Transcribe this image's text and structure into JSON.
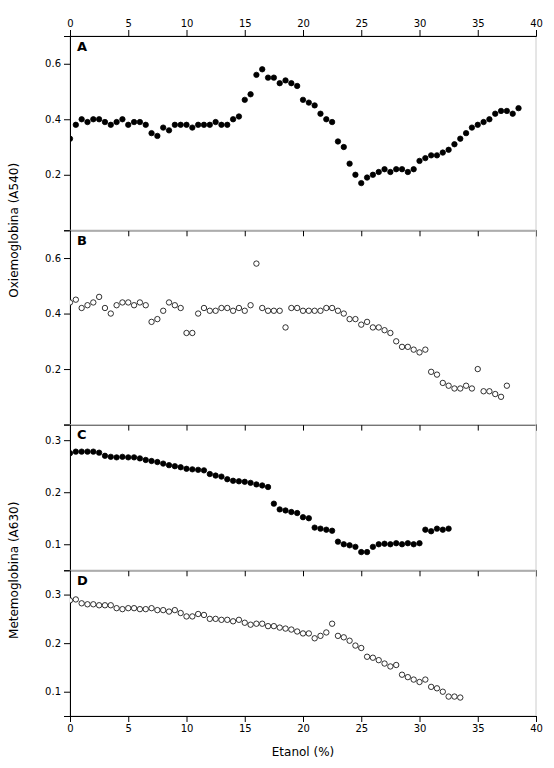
{
  "chart_data": [
    {
      "type": "scatter",
      "title": "A",
      "x": [
        0,
        0.5,
        1,
        1.5,
        2,
        2.5,
        3,
        3.5,
        4,
        4.5,
        5,
        5.5,
        6,
        6.5,
        7,
        7.5,
        8,
        8.5,
        9,
        9.5,
        10,
        10.5,
        11,
        11.5,
        12,
        12.5,
        13,
        13.5,
        14,
        14.5,
        15,
        15.5,
        16,
        16.5,
        17,
        17.5,
        18,
        18.5,
        19,
        19.5,
        20,
        20.5,
        21,
        21.5,
        22,
        22.5,
        23,
        23.5,
        24,
        24.5,
        25,
        25.5,
        26,
        26.5,
        27,
        27.5,
        28,
        28.5,
        29,
        29.5,
        30,
        30.5,
        31,
        31.5,
        32,
        32.5,
        33,
        33.5,
        34,
        34.5,
        35,
        35.5,
        36,
        36.5,
        37,
        37.5,
        38,
        38.5
      ],
      "values": [
        0.33,
        0.38,
        0.4,
        0.39,
        0.4,
        0.4,
        0.39,
        0.38,
        0.39,
        0.4,
        0.38,
        0.39,
        0.39,
        0.38,
        0.35,
        0.34,
        0.37,
        0.36,
        0.38,
        0.38,
        0.38,
        0.37,
        0.38,
        0.38,
        0.38,
        0.39,
        0.38,
        0.38,
        0.4,
        0.41,
        0.47,
        0.49,
        0.56,
        0.58,
        0.55,
        0.55,
        0.53,
        0.54,
        0.53,
        0.52,
        0.47,
        0.46,
        0.45,
        0.42,
        0.4,
        0.39,
        0.32,
        0.3,
        0.24,
        0.2,
        0.17,
        0.19,
        0.2,
        0.21,
        0.22,
        0.21,
        0.22,
        0.22,
        0.21,
        0.22,
        0.25,
        0.26,
        0.27,
        0.27,
        0.28,
        0.29,
        0.31,
        0.33,
        0.35,
        0.37,
        0.38,
        0.39,
        0.4,
        0.42,
        0.43,
        0.43,
        0.42,
        0.44
      ],
      "color": "black",
      "marker": "circle",
      "xlim": [
        0,
        40
      ],
      "xticks": [
        0,
        5,
        10,
        15,
        20,
        25,
        30,
        35,
        40
      ],
      "ylim": [
        0.0,
        0.7
      ],
      "yticks": [
        0.2,
        0.4,
        0.6
      ],
      "ylabel": "Oxiemoglobina (A540)"
    },
    {
      "type": "scatter",
      "title": "B",
      "x": [
        0,
        0.5,
        1,
        1.5,
        2,
        2.5,
        3,
        3.5,
        4,
        4.5,
        5,
        5.5,
        6,
        6.5,
        7,
        7.5,
        8,
        8.5,
        9,
        9.5,
        10,
        10.5,
        11,
        11.5,
        12,
        12.5,
        13,
        13.5,
        14,
        14.5,
        15,
        15.5,
        16,
        16.5,
        17,
        17.5,
        18,
        18.5,
        19,
        19.5,
        20,
        20.5,
        21,
        21.5,
        22,
        22.5,
        23,
        23.5,
        24,
        24.5,
        25,
        25.5,
        26,
        26.5,
        27,
        27.5,
        28,
        28.5,
        29,
        29.5,
        30,
        30.5,
        31,
        31.5,
        32,
        32.5,
        33,
        33.5,
        34,
        34.5,
        35,
        35.5,
        36,
        36.5,
        37,
        37.5
      ],
      "values": [
        0.44,
        0.45,
        0.42,
        0.43,
        0.44,
        0.46,
        0.42,
        0.4,
        0.43,
        0.44,
        0.44,
        0.43,
        0.44,
        0.43,
        0.37,
        0.38,
        0.41,
        0.44,
        0.43,
        0.42,
        0.33,
        0.33,
        0.4,
        0.42,
        0.41,
        0.41,
        0.42,
        0.42,
        0.41,
        0.42,
        0.41,
        0.43,
        0.58,
        0.42,
        0.41,
        0.41,
        0.41,
        0.35,
        0.42,
        0.42,
        0.41,
        0.41,
        0.41,
        0.41,
        0.42,
        0.42,
        0.41,
        0.4,
        0.38,
        0.38,
        0.36,
        0.37,
        0.35,
        0.35,
        0.34,
        0.33,
        0.3,
        0.28,
        0.28,
        0.27,
        0.26,
        0.27,
        0.19,
        0.18,
        0.15,
        0.14,
        0.13,
        0.13,
        0.14,
        0.13,
        0.2,
        0.12,
        0.12,
        0.11,
        0.1,
        0.14
      ],
      "color": "white",
      "marker": "circle",
      "xlim": [
        0,
        40
      ],
      "xticks": [
        0,
        5,
        10,
        15,
        20,
        25,
        30,
        35,
        40
      ],
      "ylim": [
        0.0,
        0.7
      ],
      "yticks": [
        0.2,
        0.4,
        0.6
      ],
      "tick_labels": "y"
    },
    {
      "type": "scatter",
      "title": "C",
      "x": [
        0,
        0.5,
        1,
        1.5,
        2,
        2.5,
        3,
        3.5,
        4,
        4.5,
        5,
        5.5,
        6,
        6.5,
        7,
        7.5,
        8,
        8.5,
        9,
        9.5,
        10,
        10.5,
        11,
        11.5,
        12,
        12.5,
        13,
        13.5,
        14,
        14.5,
        15,
        15.5,
        16,
        16.5,
        17,
        17.5,
        18,
        18.5,
        19,
        19.5,
        20,
        20.5,
        21,
        21.5,
        22,
        22.5,
        23,
        23.5,
        24,
        24.5,
        25,
        25.5,
        26,
        26.5,
        27,
        27.5,
        28,
        28.5,
        29,
        29.5,
        30,
        30.5,
        31,
        31.5,
        32,
        32.5
      ],
      "values": [
        0.275,
        0.278,
        0.278,
        0.278,
        0.278,
        0.276,
        0.27,
        0.268,
        0.267,
        0.268,
        0.267,
        0.267,
        0.265,
        0.262,
        0.26,
        0.258,
        0.255,
        0.252,
        0.25,
        0.248,
        0.245,
        0.244,
        0.243,
        0.242,
        0.235,
        0.232,
        0.23,
        0.225,
        0.222,
        0.221,
        0.22,
        0.218,
        0.215,
        0.213,
        0.21,
        0.178,
        0.167,
        0.165,
        0.162,
        0.16,
        0.152,
        0.15,
        0.132,
        0.13,
        0.128,
        0.126,
        0.105,
        0.1,
        0.098,
        0.095,
        0.085,
        0.085,
        0.095,
        0.1,
        0.101,
        0.1,
        0.102,
        0.1,
        0.102,
        0.1,
        0.102,
        0.128,
        0.125,
        0.13,
        0.128,
        0.13
      ],
      "color": "black",
      "marker": "circle",
      "xlim": [
        0,
        40
      ],
      "xticks": [
        0,
        5,
        10,
        15,
        20,
        25,
        30,
        35,
        40
      ],
      "ylim": [
        0.05,
        0.33
      ],
      "yticks": [
        0.1,
        0.2,
        0.3
      ],
      "tick_labels": "y",
      "ylabel": "Metemoglobina (A630)"
    },
    {
      "type": "scatter",
      "title": "D",
      "x": [
        0,
        0.5,
        1,
        1.5,
        2,
        2.5,
        3,
        3.5,
        4,
        4.5,
        5,
        5.5,
        6,
        6.5,
        7,
        7.5,
        8,
        8.5,
        9,
        9.5,
        10,
        10.5,
        11,
        11.5,
        12,
        12.5,
        13,
        13.5,
        14,
        14.5,
        15,
        15.5,
        16,
        16.5,
        17,
        17.5,
        18,
        18.5,
        19,
        19.5,
        20,
        20.5,
        21,
        21.5,
        22,
        22.5,
        23,
        23.5,
        24,
        24.5,
        25,
        25.5,
        26,
        26.5,
        27,
        27.5,
        28,
        28.5,
        29,
        29.5,
        30,
        30.5,
        31,
        31.5,
        32,
        32.5,
        33,
        33.5
      ],
      "values": [
        0.288,
        0.29,
        0.282,
        0.28,
        0.28,
        0.278,
        0.278,
        0.278,
        0.272,
        0.27,
        0.272,
        0.272,
        0.27,
        0.27,
        0.272,
        0.268,
        0.268,
        0.265,
        0.268,
        0.262,
        0.255,
        0.255,
        0.26,
        0.258,
        0.25,
        0.25,
        0.248,
        0.248,
        0.245,
        0.248,
        0.242,
        0.238,
        0.24,
        0.24,
        0.235,
        0.235,
        0.232,
        0.23,
        0.228,
        0.224,
        0.22,
        0.22,
        0.21,
        0.215,
        0.222,
        0.24,
        0.215,
        0.212,
        0.205,
        0.195,
        0.19,
        0.172,
        0.17,
        0.165,
        0.158,
        0.152,
        0.155,
        0.135,
        0.13,
        0.125,
        0.12,
        0.125,
        0.11,
        0.107,
        0.1,
        0.09,
        0.09,
        0.088
      ],
      "color": "white",
      "marker": "circle",
      "xlim": [
        0,
        40
      ],
      "xticks": [
        0,
        5,
        10,
        15,
        20,
        25,
        30,
        35,
        40
      ],
      "ylim": [
        0.05,
        0.35
      ],
      "yticks": [
        0.1,
        0.2,
        0.3
      ],
      "xlabel": "Etanol (%)"
    }
  ]
}
